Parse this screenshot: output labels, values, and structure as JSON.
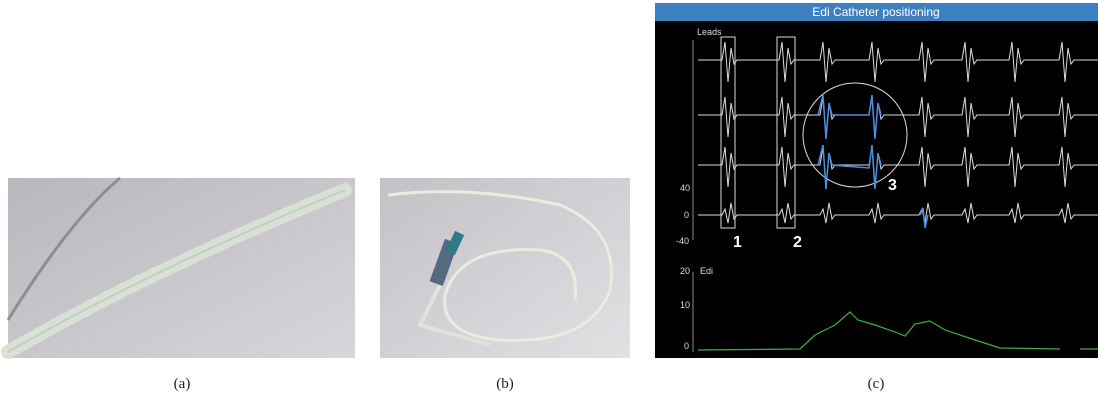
{
  "panels": [
    {
      "caption": "(a)"
    },
    {
      "caption": "(b)"
    },
    {
      "caption": "(c)",
      "title": "Edi Catheter positioning",
      "leads_label": "Leads",
      "leads_ticks": [
        "40",
        "0",
        "-40"
      ],
      "markers": [
        "1",
        "2",
        "3"
      ],
      "edi_label": "Edi",
      "edi_ticks": [
        "20",
        "10",
        "0"
      ]
    }
  ]
}
